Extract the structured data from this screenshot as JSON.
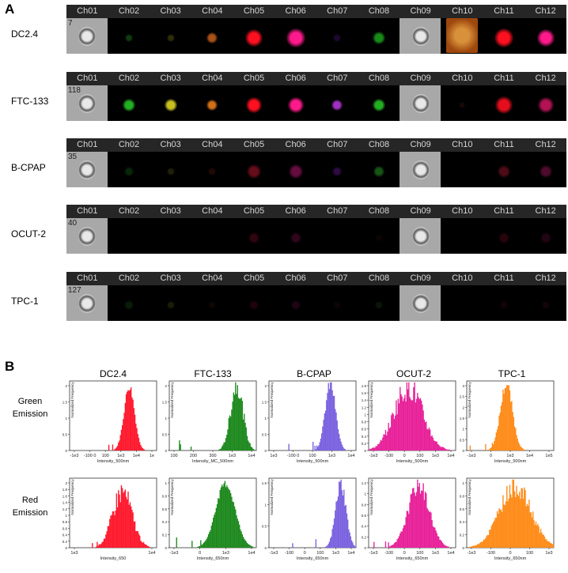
{
  "panel_a_letter": "A",
  "panel_b_letter": "B",
  "channels": [
    "Ch01",
    "Ch02",
    "Ch03",
    "Ch04",
    "Ch05",
    "Ch06",
    "Ch07",
    "Ch08",
    "Ch09",
    "Ch10",
    "Ch11",
    "Ch12"
  ],
  "imaging_rows": [
    {
      "label": "DC2.4",
      "count": "7"
    },
    {
      "label": "FTC-133",
      "count": "118"
    },
    {
      "label": "B-CPAP",
      "count": "35"
    },
    {
      "label": "OCUT-2",
      "count": "40"
    },
    {
      "label": "TPC-1",
      "count": "127"
    }
  ],
  "histogram_columns": [
    "DC2.4",
    "FTC-133",
    "B-CPAP",
    "OCUT-2",
    "TPC-1"
  ],
  "emission_rows": [
    {
      "line1": "Green",
      "line2": "Emission"
    },
    {
      "line1": "Red",
      "line2": "Emission"
    }
  ],
  "colors": {
    "dc24": "#ff1a2e",
    "ftc133": "#1f8a1f",
    "bcpap": "#7b63e0",
    "ocut2": "#e8229a",
    "tpc1": "#ff8c1a"
  },
  "ylabel": "Normalized Frequency",
  "histograms": [
    {
      "row": 0,
      "col": 0,
      "color": "#ff1a2e",
      "xlabel": "Intensity_500nm",
      "ticks": [
        "-1e3",
        "-100 0",
        "100",
        "1e3",
        "1e4",
        "1e"
      ],
      "yticks": [
        "0",
        "0.5",
        "1",
        "1.5",
        "2"
      ],
      "peak": 0.68,
      "width": 0.06,
      "height": 0.92,
      "noise": 0.15
    },
    {
      "row": 0,
      "col": 1,
      "color": "#1f8a1f",
      "xlabel": "Intensity_MC_500nm",
      "ticks": [
        "100",
        "200",
        "300",
        "1e3",
        "1e4"
      ],
      "yticks": [
        "0",
        "0.5",
        "1",
        "1.5",
        "2"
      ],
      "peak": 0.77,
      "width": 0.07,
      "height": 0.95,
      "noise": 0.35
    },
    {
      "row": 0,
      "col": 2,
      "color": "#7b63e0",
      "xlabel": "Intensity_500nm",
      "ticks": [
        "1e3",
        "-100 0",
        "100",
        "1e3",
        "1e4"
      ],
      "yticks": [
        "0",
        "0.5",
        "1",
        "1.5",
        "2"
      ],
      "peak": 0.7,
      "width": 0.06,
      "height": 0.95,
      "noise": 0.2
    },
    {
      "row": 0,
      "col": 3,
      "color": "#e8229a",
      "xlabel": "Intensity_500nm",
      "ticks": [
        "-1e3",
        "-100",
        "0",
        "100",
        "1e3",
        "1e4"
      ],
      "yticks": [
        "0",
        "0.2",
        "0.4",
        "0.6",
        "0.8",
        "1",
        "1.2",
        "1.4",
        "1.6",
        "1.8"
      ],
      "peak": 0.45,
      "width": 0.16,
      "height": 0.92,
      "noise": 0.45
    },
    {
      "row": 0,
      "col": 4,
      "color": "#ff8c1a",
      "xlabel": "Intensity_500nm",
      "ticks": [
        "-1e3",
        "0",
        "1e3",
        "1e4",
        "1e5"
      ],
      "yticks": [
        "0",
        "0.5",
        "1",
        "1.5",
        "2",
        "2.5",
        "3"
      ],
      "peak": 0.45,
      "width": 0.07,
      "height": 0.95,
      "noise": 0.2
    },
    {
      "row": 1,
      "col": 0,
      "color": "#ff1a2e",
      "xlabel": "Intensity_650",
      "ticks": [
        "1e3",
        "1e4"
      ],
      "yticks": [
        "0",
        "0.2",
        "0.4",
        "0.6",
        "0.8",
        "1",
        "1.2",
        "1.4",
        "1.6",
        "1.8",
        "2"
      ],
      "peak": 0.6,
      "width": 0.11,
      "height": 0.8,
      "noise": 0.45
    },
    {
      "row": 1,
      "col": 1,
      "color": "#1f8a1f",
      "xlabel": "Intensity_650nm",
      "ticks": [
        "-1e3",
        "0",
        "1e3",
        "1e4"
      ],
      "yticks": [
        "0",
        "0.2",
        "0.4",
        "0.6",
        "0.8",
        "1"
      ],
      "peak": 0.64,
      "width": 0.11,
      "height": 0.92,
      "noise": 0.12
    },
    {
      "row": 1,
      "col": 2,
      "color": "#7b63e0",
      "xlabel": "Intensity_650nm",
      "ticks": [
        "-1e3",
        "-100",
        "0",
        "100",
        "1e3",
        "1e4"
      ],
      "yticks": [
        "0",
        "0.5",
        "1",
        "1.5"
      ],
      "peak": 0.82,
      "width": 0.06,
      "height": 0.92,
      "noise": 0.25
    },
    {
      "row": 1,
      "col": 3,
      "color": "#e8229a",
      "xlabel": "Intensity_650nm",
      "ticks": [
        "-1e3",
        "-100",
        "0",
        "100",
        "1e3",
        "1e4"
      ],
      "yticks": [
        "0",
        "0.2",
        "0.4",
        "0.6",
        "0.8",
        "1",
        "1.2"
      ],
      "peak": 0.57,
      "width": 0.12,
      "height": 0.9,
      "noise": 0.3
    },
    {
      "row": 1,
      "col": 4,
      "color": "#ff8c1a",
      "xlabel": "Intensity_650nm",
      "ticks": [
        "-1e3",
        "-100",
        "0",
        "100",
        "1e3"
      ],
      "yticks": [
        "0",
        "0.2",
        "0.4",
        "0.6",
        "0.8",
        "1"
      ],
      "peak": 0.55,
      "width": 0.18,
      "height": 0.88,
      "noise": 0.35
    }
  ]
}
